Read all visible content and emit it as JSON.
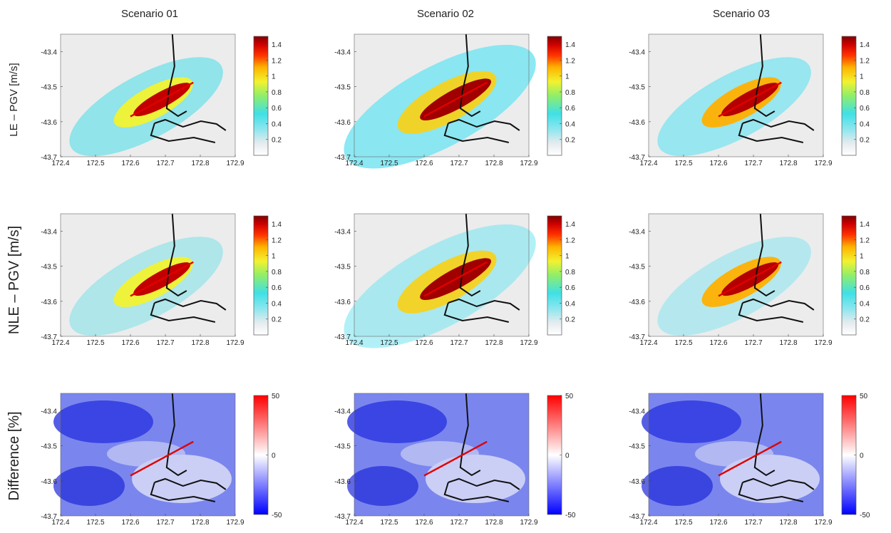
{
  "columns": [
    "Scenario 01",
    "Scenario 02",
    "Scenario 03"
  ],
  "row_labels": [
    "LE – PGV [m/s]",
    "NLE – PGV [m/s]",
    "Difference [%]"
  ],
  "chart_data": {
    "type": "heatmap",
    "xlim": [
      172.4,
      172.9
    ],
    "ylim": [
      -43.7,
      -43.35
    ],
    "x_ticks": [
      172.4,
      172.5,
      172.6,
      172.7,
      172.8,
      172.9
    ],
    "x_tick_labels": [
      "172.4",
      "172.5",
      "172.6",
      "172.7",
      "172.8",
      "172.9"
    ],
    "y_ticks": [
      -43.4,
      -43.5,
      -43.6,
      -43.7
    ],
    "y_tick_labels": [
      "-43.4",
      "-43.5",
      "-43.6",
      "-43.7"
    ],
    "fault_trace": [
      [
        172.6,
        -43.585
      ],
      [
        172.78,
        -43.488
      ]
    ],
    "pgv_colorbar": {
      "colormap": "jet (white to dark red)",
      "range": [
        0,
        1.5
      ],
      "ticks": [
        0.2,
        0.4,
        0.6,
        0.8,
        1,
        1.2,
        1.4
      ],
      "tick_labels": [
        "0.2",
        "0.4",
        "0.6",
        "0.8",
        "1",
        "1.2",
        "1.4"
      ]
    },
    "diff_colorbar": {
      "colormap": "blue-white-red",
      "range": [
        -50,
        50
      ],
      "ticks": [
        50,
        0,
        -50
      ],
      "tick_labels": [
        "50",
        "0",
        "-50"
      ]
    },
    "rows": [
      "LE – PGV [m/s]",
      "NLE – PGV [m/s]",
      "Difference [%]"
    ],
    "columns": [
      "Scenario 01",
      "Scenario 02",
      "Scenario 03"
    ]
  }
}
